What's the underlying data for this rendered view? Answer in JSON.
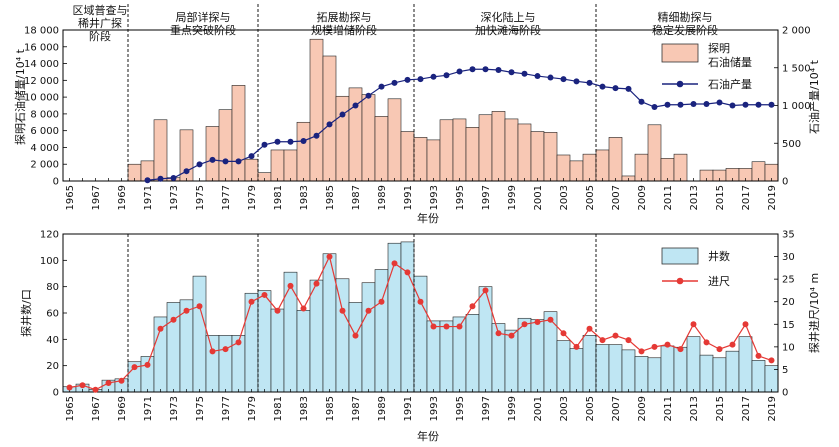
{
  "chart_data": [
    {
      "type": "bar+line",
      "xlabel": "年份",
      "ylabel_left": "探明石油储量/10⁴ t",
      "ylabel_right": "石油产量/10⁴ t",
      "ylim_left": [
        0,
        18000
      ],
      "ylim_right": [
        0,
        2000
      ],
      "yticks_left": [
        "0",
        "2 000",
        "4 000",
        "6 000",
        "8 000",
        "10 000",
        "12 000",
        "14 000",
        "16 000",
        "18 000"
      ],
      "yticks_right": [
        "0",
        "500",
        "1 000",
        "1 500",
        "2 000"
      ],
      "x_tick_labels": [
        "1965",
        "1967",
        "1969",
        "1971",
        "1973",
        "1975",
        "1977",
        "1979",
        "1981",
        "1983",
        "1985",
        "1987",
        "1989",
        "1991",
        "1993",
        "1995",
        "1997",
        "1999",
        "2001",
        "2003",
        "2005",
        "2007",
        "2009",
        "2011",
        "2013",
        "2015",
        "2017",
        "2019"
      ],
      "years": [
        1965,
        1966,
        1967,
        1968,
        1969,
        1970,
        1971,
        1972,
        1973,
        1974,
        1975,
        1976,
        1977,
        1978,
        1979,
        1980,
        1981,
        1982,
        1983,
        1984,
        1985,
        1986,
        1987,
        1988,
        1989,
        1990,
        1991,
        1992,
        1993,
        1994,
        1995,
        1996,
        1997,
        1998,
        1999,
        2000,
        2001,
        2002,
        2003,
        2004,
        2005,
        2006,
        2007,
        2008,
        2009,
        2010,
        2011,
        2012,
        2013,
        2014,
        2015,
        2016,
        2017,
        2018,
        2019
      ],
      "stages": [
        "区域普查与稀井广探阶段",
        "局部详探与重点突破阶段",
        "拓展勘探与规模增储阶段",
        "深化陆上与加快滩海阶段",
        "精细勘探与稳定发展阶段"
      ],
      "stage_boundaries": [
        1969.5,
        1979.5,
        1991.5,
        2005.5
      ],
      "series": [
        {
          "name": "探明石油储量",
          "kind": "bar",
          "color": "#f8c8b4",
          "values": [
            0,
            0,
            0,
            0,
            0,
            2000,
            2400,
            7300,
            400,
            6100,
            0,
            6500,
            8500,
            11400,
            2600,
            1000,
            3700,
            3700,
            7000,
            16900,
            14900,
            10100,
            11100,
            10300,
            7700,
            9800,
            5900,
            5200,
            4900,
            7300,
            7400,
            6400,
            7900,
            8300,
            7400,
            6800,
            5900,
            5800,
            3100,
            2400,
            3200,
            3700,
            5200,
            600,
            3200,
            6700,
            2700,
            3200,
            0,
            1300,
            1300,
            1500,
            1500,
            2300,
            2000
          ]
        },
        {
          "name": "石油产量",
          "kind": "line",
          "color": "#1a237e",
          "values": [
            null,
            null,
            null,
            null,
            null,
            null,
            10,
            30,
            40,
            130,
            220,
            280,
            260,
            260,
            330,
            480,
            520,
            520,
            530,
            600,
            750,
            880,
            1000,
            1130,
            1250,
            1300,
            1340,
            1350,
            1380,
            1400,
            1450,
            1480,
            1480,
            1470,
            1440,
            1420,
            1390,
            1370,
            1350,
            1320,
            1300,
            1250,
            1230,
            1220,
            1050,
            980,
            1010,
            1010,
            1020,
            1020,
            1040,
            1000,
            1010,
            1010,
            1010
          ]
        }
      ]
    },
    {
      "type": "bar+line",
      "xlabel": "年份",
      "ylabel_left": "探井数/口",
      "ylabel_right": "探井进尺/10⁴ m",
      "ylim_left": [
        0,
        120
      ],
      "ylim_right": [
        0,
        35
      ],
      "yticks_left": [
        "0",
        "20",
        "40",
        "60",
        "80",
        "100",
        "120"
      ],
      "yticks_right": [
        "0",
        "5",
        "10",
        "15",
        "20",
        "25",
        "30",
        "35"
      ],
      "x_tick_labels": [
        "1965",
        "1967",
        "1969",
        "1971",
        "1973",
        "1975",
        "1977",
        "1979",
        "1981",
        "1983",
        "1985",
        "1987",
        "1989",
        "1991",
        "1993",
        "1995",
        "1997",
        "1999",
        "2001",
        "2003",
        "2005",
        "2007",
        "2009",
        "2011",
        "2013",
        "2015",
        "2017",
        "2019"
      ],
      "years": [
        1965,
        1966,
        1967,
        1968,
        1969,
        1970,
        1971,
        1972,
        1973,
        1974,
        1975,
        1976,
        1977,
        1978,
        1979,
        1980,
        1981,
        1982,
        1983,
        1984,
        1985,
        1986,
        1987,
        1988,
        1989,
        1990,
        1991,
        1992,
        1993,
        1994,
        1995,
        1996,
        1997,
        1998,
        1999,
        2000,
        2001,
        2002,
        2003,
        2004,
        2005,
        2006,
        2007,
        2008,
        2009,
        2010,
        2011,
        2012,
        2013,
        2014,
        2015,
        2016,
        2017,
        2018,
        2019
      ],
      "stage_boundaries": [
        1969.5,
        1979.5,
        1991.5,
        2005.5
      ],
      "series": [
        {
          "name": "井数",
          "kind": "bar",
          "color": "#bfe6f3",
          "values": [
            4,
            6,
            2,
            9,
            10,
            23,
            27,
            57,
            68,
            70,
            88,
            43,
            43,
            43,
            75,
            77,
            63,
            91,
            62,
            85,
            105,
            86,
            68,
            83,
            93,
            113,
            114,
            88,
            54,
            54,
            57,
            59,
            80,
            52,
            47,
            56,
            55,
            61,
            39,
            33,
            43,
            36,
            36,
            32,
            27,
            26,
            35,
            34,
            42,
            28,
            26,
            31,
            42,
            24,
            20
          ]
        },
        {
          "name": "进尺",
          "kind": "line",
          "color": "#e53935",
          "values": [
            1.0,
            1.5,
            0.5,
            2.0,
            2.5,
            5.5,
            6.0,
            14.0,
            16.0,
            18.0,
            19.0,
            9.0,
            9.5,
            11.0,
            20.0,
            21.5,
            18.0,
            23.5,
            18.5,
            24.0,
            30.0,
            18.0,
            12.5,
            18.0,
            20.0,
            28.5,
            26.5,
            20.0,
            14.5,
            14.5,
            14.5,
            19.0,
            22.5,
            13.0,
            12.5,
            15.0,
            15.5,
            16.0,
            13.0,
            10.0,
            14.0,
            11.5,
            12.5,
            11.5,
            9.0,
            10.0,
            10.5,
            9.5,
            15.0,
            11.0,
            9.5,
            10.5,
            15.0,
            8.0,
            7.0
          ]
        }
      ]
    }
  ]
}
